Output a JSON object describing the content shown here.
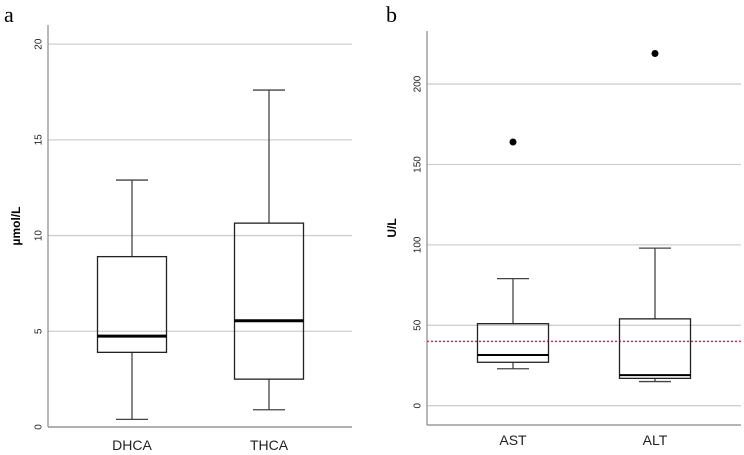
{
  "chart_data": [
    {
      "type": "box",
      "panel_label": "a",
      "ylabel": "µmol/L",
      "ylim": [
        0,
        21
      ],
      "yticks": [
        0,
        5,
        10,
        15,
        20
      ],
      "grid": true,
      "categories": [
        "DHCA",
        "THCA"
      ],
      "boxes": [
        {
          "min": 0.4,
          "q1": 3.9,
          "median": 4.75,
          "q3": 8.9,
          "max": 12.9,
          "outliers": []
        },
        {
          "min": 0.9,
          "q1": 2.5,
          "median": 5.55,
          "q3": 10.65,
          "max": 17.6,
          "outliers": []
        }
      ]
    },
    {
      "type": "box",
      "panel_label": "b",
      "ylabel": "U/L",
      "ylim": [
        -12,
        233
      ],
      "yticks": [
        0,
        50,
        100,
        150,
        200
      ],
      "grid": true,
      "categories": [
        "AST",
        "ALT"
      ],
      "boxes": [
        {
          "min": 23,
          "q1": 27,
          "median": 31.5,
          "q3": 51,
          "max": 79,
          "outliers": [
            164
          ]
        },
        {
          "min": 15,
          "q1": 17,
          "median": 19,
          "q3": 54,
          "max": 98,
          "outliers": [
            219
          ]
        }
      ],
      "reference_line": {
        "value": 40,
        "color": "#e8245c",
        "style": "dashed"
      }
    }
  ]
}
